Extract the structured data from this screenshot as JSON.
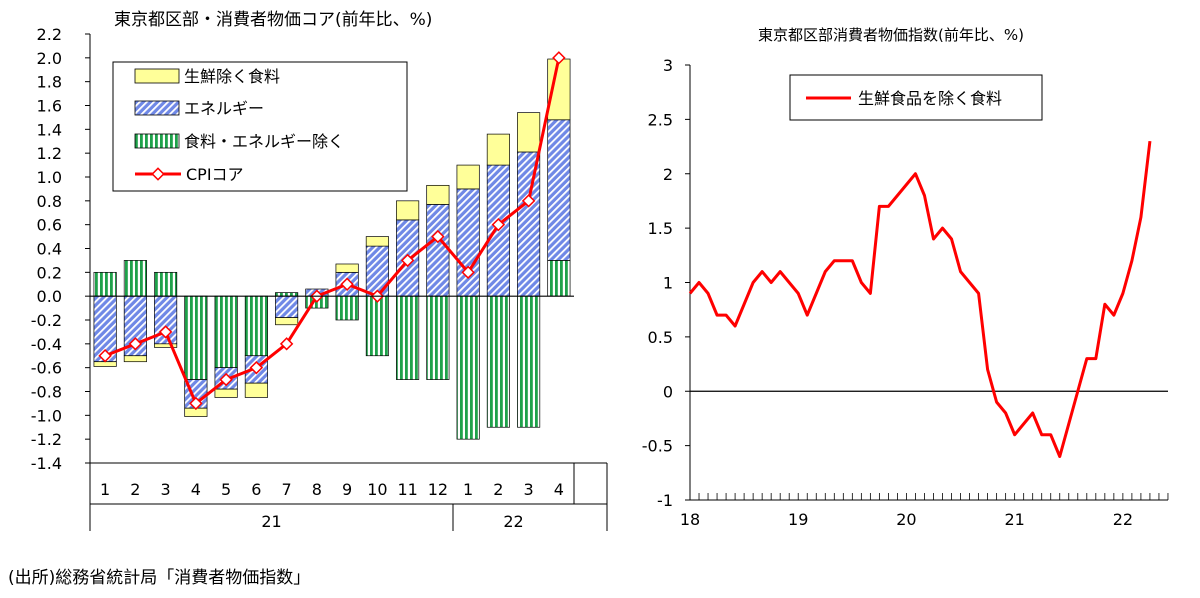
{
  "colors": {
    "fresh_food": "#ffff99",
    "energy_fill": "#6f88e6",
    "energy_stripe": "#ffffff",
    "core_core_stripe": "#1fa14a",
    "line": "#ff0000",
    "axis": "#000000"
  },
  "source": "(出所)総務省統計局「消費者物価指数」",
  "chart_data": [
    {
      "type": "bar",
      "stacked": true,
      "title": "東京都区部・消費者物価コア(前年比、%)",
      "categories": [
        "1",
        "2",
        "3",
        "4",
        "5",
        "6",
        "7",
        "8",
        "9",
        "10",
        "11",
        "12",
        "1",
        "2",
        "3",
        "4"
      ],
      "year_groups": [
        {
          "label": "21",
          "start": 0,
          "end": 11
        },
        {
          "label": "22",
          "start": 12,
          "end": 15
        }
      ],
      "ylim": [
        -1.4,
        2.2
      ],
      "yticks": [
        "2.2",
        "2.0",
        "1.8",
        "1.6",
        "1.4",
        "1.2",
        "1.0",
        "0.8",
        "0.6",
        "0.4",
        "0.2",
        "0.0",
        "-0.2",
        "-0.4",
        "-0.6",
        "-0.8",
        "-1.0",
        "-1.2",
        "-1.4"
      ],
      "legend_position": "top-left",
      "series": [
        {
          "name": "生鮮除く食料",
          "kind": "bar",
          "color_key": "fresh_food",
          "values": [
            -0.04,
            -0.05,
            -0.03,
            -0.07,
            -0.07,
            -0.12,
            -0.06,
            0.0,
            0.07,
            0.08,
            0.16,
            0.16,
            0.2,
            0.26,
            0.33,
            0.51
          ]
        },
        {
          "name": "エネルギー",
          "kind": "bar",
          "color_key": "energy_fill",
          "values": [
            -0.55,
            -0.5,
            -0.4,
            -0.24,
            -0.18,
            -0.23,
            -0.18,
            0.06,
            0.2,
            0.42,
            0.64,
            0.77,
            0.9,
            1.1,
            1.21,
            1.18
          ]
        },
        {
          "name": "食料・エネルギー除く",
          "kind": "bar",
          "color_key": "core_core_stripe",
          "values": [
            0.2,
            0.3,
            0.2,
            -0.7,
            -0.6,
            -0.5,
            0.03,
            -0.1,
            -0.2,
            -0.5,
            -0.7,
            -0.7,
            -1.2,
            -1.1,
            -1.1,
            0.3
          ]
        },
        {
          "name": "CPIコア",
          "kind": "line",
          "color_key": "line",
          "values": [
            -0.5,
            -0.4,
            -0.3,
            -0.9,
            -0.7,
            -0.6,
            -0.4,
            0.0,
            0.1,
            0.0,
            0.3,
            0.5,
            0.2,
            0.6,
            0.8,
            2.0
          ]
        }
      ]
    },
    {
      "type": "line",
      "title": "東京都区部消費者物価指数(前年比、%)",
      "xlim": [
        2018.0,
        2022.417
      ],
      "x_tick_labels": [
        "18",
        "19",
        "20",
        "21",
        "22"
      ],
      "ylim": [
        -1,
        3
      ],
      "yticks": [
        "3",
        "2.5",
        "2",
        "1.5",
        "1",
        "0.5",
        "0",
        "-0.5",
        "-1"
      ],
      "legend_position": "top-left",
      "series": [
        {
          "name": "生鮮食品を除く食料",
          "color_key": "line",
          "x_start": "2018-01",
          "frequency": "monthly",
          "values": [
            0.9,
            1.0,
            0.9,
            0.7,
            0.7,
            0.6,
            0.8,
            1.0,
            1.1,
            1.0,
            1.1,
            1.0,
            0.9,
            0.7,
            0.9,
            1.1,
            1.2,
            1.2,
            1.2,
            1.0,
            0.9,
            1.7,
            1.7,
            1.8,
            1.9,
            2.0,
            1.8,
            1.4,
            1.5,
            1.4,
            1.1,
            1.0,
            0.9,
            0.2,
            -0.1,
            -0.2,
            -0.4,
            -0.3,
            -0.2,
            -0.4,
            -0.4,
            -0.6,
            -0.3,
            0.0,
            0.3,
            0.3,
            0.8,
            0.7,
            0.9,
            1.2,
            1.6,
            2.3
          ]
        }
      ]
    }
  ]
}
